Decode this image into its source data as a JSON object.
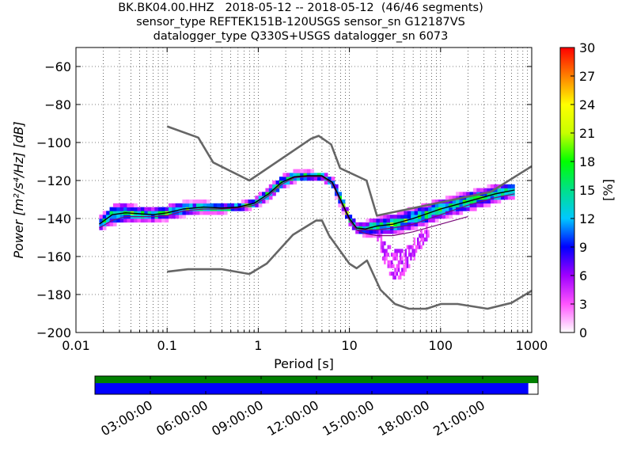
{
  "title_lines": [
    "BK.BK04.00.HHZ   2018-05-12 -- 2018-05-12  (46/46 segments)",
    "sensor_type REFTEK151B-120USGS sensor_sn G12187VS",
    "datalogger_type Q330S+USGS datalogger_sn 6073"
  ],
  "chart_data": {
    "type": "heatmap",
    "xlabel": "Period [s]",
    "ylabel": "Power [m²/s⁴/Hz] [dB]",
    "x_scale": "log",
    "xlim": [
      0.01,
      1000
    ],
    "ylim": [
      -200,
      -50
    ],
    "x_ticks": [
      0.01,
      0.1,
      1,
      10,
      100,
      1000
    ],
    "x_tick_labels": [
      "0.01",
      "0.1",
      "1",
      "10",
      "100",
      "1000"
    ],
    "y_ticks": [
      -200,
      -180,
      -160,
      -140,
      -120,
      -100,
      -80,
      -60
    ],
    "y_tick_labels": [
      "−200",
      "−180",
      "−160",
      "−140",
      "−120",
      "−100",
      "−80",
      "−60"
    ],
    "grid": true,
    "colorbar": {
      "label": "[%]",
      "range": [
        0,
        30
      ],
      "ticks": [
        0,
        3,
        6,
        9,
        12,
        15,
        18,
        21,
        24,
        27,
        30
      ],
      "tick_labels": [
        "0",
        "3",
        "6",
        "9",
        "12",
        "15",
        "18",
        "21",
        "24",
        "27",
        "30"
      ],
      "colormap": [
        "#ffffff",
        "#ff55ff",
        "#a000ff",
        "#0000ff",
        "#00c8ff",
        "#00e08a",
        "#00ff00",
        "#c8ff00",
        "#ffff00",
        "#ff8000",
        "#ff0000"
      ]
    },
    "high_noise_model": {
      "x": [
        0.1,
        0.22,
        0.32,
        0.8,
        3.8,
        4.6,
        6.3,
        7.9,
        15.4,
        20,
        354.8,
        1000
      ],
      "y": [
        -91.5,
        -97.4,
        -110.5,
        -120,
        -98,
        -96.5,
        -101,
        -113.5,
        -120,
        -138.5,
        -126,
        -112.5
      ]
    },
    "low_noise_model": {
      "x": [
        0.1,
        0.17,
        0.4,
        0.8,
        1.24,
        2.4,
        4.3,
        5,
        6,
        10,
        12,
        15.6,
        21.9,
        31.6,
        45,
        70,
        101,
        154,
        328,
        600,
        1000
      ],
      "y": [
        -168,
        -166.7,
        -166.7,
        -169.2,
        -163.7,
        -148.6,
        -141.1,
        -141.1,
        -149,
        -163.8,
        -166.2,
        -162.1,
        -177.5,
        -185,
        -187.5,
        -187.5,
        -185,
        -185,
        -187.5,
        -184.4,
        -178
      ]
    },
    "mode_curve": {
      "x": [
        0.018,
        0.025,
        0.035,
        0.05,
        0.07,
        0.1,
        0.15,
        0.25,
        0.4,
        0.6,
        0.9,
        1.3,
        1.8,
        2.5,
        3.5,
        5,
        6.5,
        8,
        10,
        12,
        15,
        20,
        30,
        50,
        100,
        200,
        400,
        650
      ],
      "y": [
        -143,
        -138,
        -137,
        -137.5,
        -138,
        -137,
        -135,
        -134,
        -134.5,
        -134,
        -132,
        -127,
        -121,
        -118,
        -117.5,
        -117.5,
        -121,
        -130,
        -140,
        -145,
        -145.5,
        -144,
        -143,
        -140,
        -135,
        -131,
        -127,
        -125
      ]
    },
    "median_curve": {
      "x": [
        0.018,
        0.025,
        0.035,
        0.05,
        0.07,
        0.1,
        0.15,
        0.25,
        0.4,
        0.6,
        0.9,
        1.3,
        1.8,
        2.5,
        3.5,
        5,
        6.5,
        8,
        10,
        12,
        15,
        20,
        30,
        50,
        100,
        200,
        400,
        650
      ],
      "y": [
        -145,
        -141,
        -139,
        -139,
        -139,
        -138.5,
        -136,
        -135,
        -135,
        -134.5,
        -133,
        -128,
        -122,
        -118.5,
        -118,
        -118,
        -122,
        -131,
        -141,
        -146,
        -146,
        -146,
        -145,
        -143,
        -138,
        -133,
        -129,
        -127
      ]
    },
    "percentile_curve": {
      "x": [
        12,
        15,
        20,
        30,
        50,
        100,
        200
      ],
      "y": [
        -146,
        -148,
        -149,
        -149,
        -147,
        -143,
        -139
      ]
    },
    "density_bands": [
      {
        "x": [
          0.018,
          0.025,
          0.035,
          0.05,
          0.07,
          0.1,
          0.15,
          0.25,
          0.4,
          0.6,
          0.9,
          1.3,
          1.8,
          2.5,
          3.5,
          5,
          6.5,
          8,
          10,
          12,
          15,
          20,
          30,
          50,
          100,
          200,
          400,
          650
        ],
        "y_low": [
          -148,
          -146,
          -142,
          -142,
          -142,
          -142,
          -140,
          -138,
          -138,
          -137,
          -136,
          -132,
          -126,
          -121,
          -120,
          -120,
          -125,
          -135,
          -144,
          -148,
          -149,
          -149,
          -149,
          -147,
          -142,
          -137,
          -133,
          -130
        ],
        "y_high": [
          -140,
          -134,
          -130,
          -133,
          -134,
          -133,
          -131,
          -131,
          -132,
          -132,
          -130,
          -124,
          -118,
          -114,
          -114,
          -115,
          -118,
          -126,
          -136,
          -142,
          -140,
          -138,
          -137,
          -134,
          -130,
          -125,
          -122,
          -121
        ]
      }
    ],
    "outlier_lobe": {
      "x": [
        20,
        25,
        30,
        40,
        55,
        75
      ],
      "y_low": [
        -151,
        -165,
        -172,
        -169,
        -158,
        -148
      ],
      "y_high": [
        -146,
        -152,
        -158,
        -157,
        -150,
        -144
      ]
    }
  },
  "timeline": {
    "tick_labels": [
      "03:00:00",
      "06:00:00",
      "09:00:00",
      "12:00:00",
      "15:00:00",
      "18:00:00",
      "21:00:00"
    ],
    "coverage_color": "#008000",
    "data_color": "#0000ff",
    "data_fraction": 0.978
  }
}
